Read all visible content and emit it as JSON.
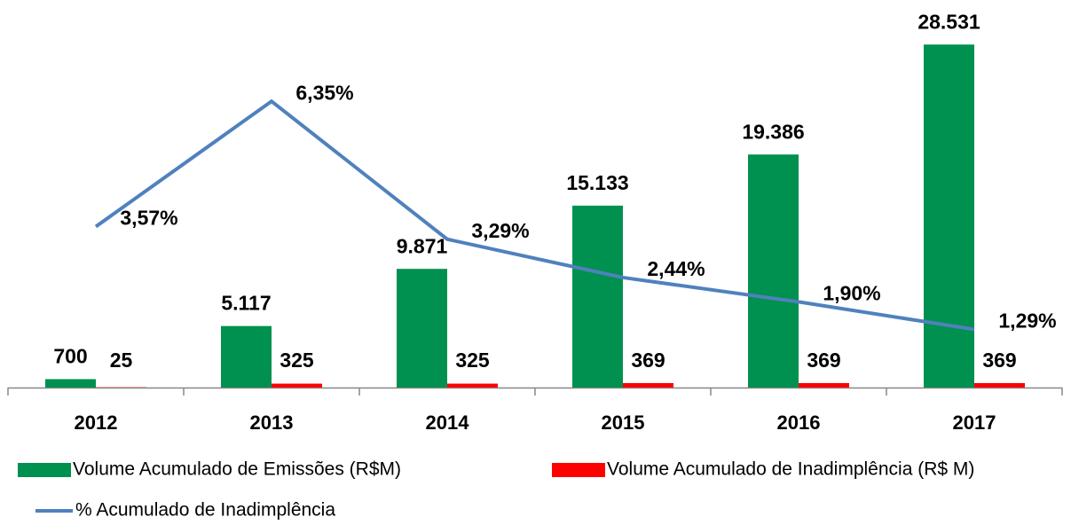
{
  "chart_data": {
    "type": "bar+line",
    "categories": [
      "2012",
      "2013",
      "2014",
      "2015",
      "2016",
      "2017"
    ],
    "ylim": [
      0,
      31500
    ],
    "y2lim": [
      0,
      8.4
    ],
    "legend": "bottom",
    "series": [
      {
        "name": "Volume Acumulado de Emissões (R$M)",
        "type": "bar",
        "color": "#00904f",
        "values": [
          700,
          5117,
          9871,
          15133,
          19386,
          28531
        ],
        "value_labels": [
          "700",
          "5.117",
          "9.871",
          "15.133",
          "19.386",
          "28.531"
        ]
      },
      {
        "name": "Volume Acumulado de Inadimplência (R$ M)",
        "type": "bar",
        "color": "#ff0000",
        "values": [
          25,
          325,
          325,
          369,
          369,
          369
        ],
        "value_labels": [
          "25",
          "325",
          "325",
          "369",
          "369",
          "369"
        ]
      },
      {
        "name": "% Acumulado de Inadimplência",
        "type": "line",
        "axis": "y2",
        "color": "#4f81bd",
        "values": [
          3.57,
          6.35,
          3.29,
          2.44,
          1.9,
          1.29
        ],
        "value_labels": [
          "3,57%",
          "6,35%",
          "3,29%",
          "2,44%",
          "1,90%",
          "1,29%"
        ]
      }
    ]
  }
}
